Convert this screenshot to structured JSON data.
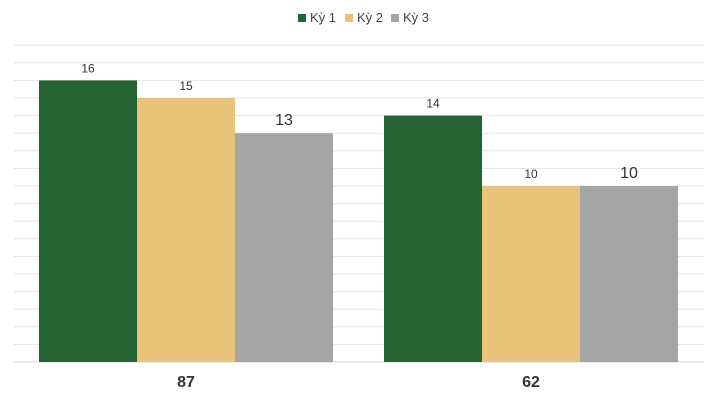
{
  "chart_data": {
    "type": "bar",
    "categories": [
      "87",
      "62"
    ],
    "series": [
      {
        "name": "Kỳ 1",
        "color": "#256332",
        "values": [
          16,
          14
        ]
      },
      {
        "name": "Kỳ 2",
        "color": "#E8C47A",
        "values": [
          15,
          10
        ]
      },
      {
        "name": "Kỳ 3",
        "color": "#A5A5A5",
        "values": [
          13,
          10
        ]
      }
    ],
    "title": "",
    "xlabel": "",
    "ylabel": "",
    "ylim": [
      0,
      16
    ],
    "grid": true,
    "legend_position": "top-center"
  }
}
